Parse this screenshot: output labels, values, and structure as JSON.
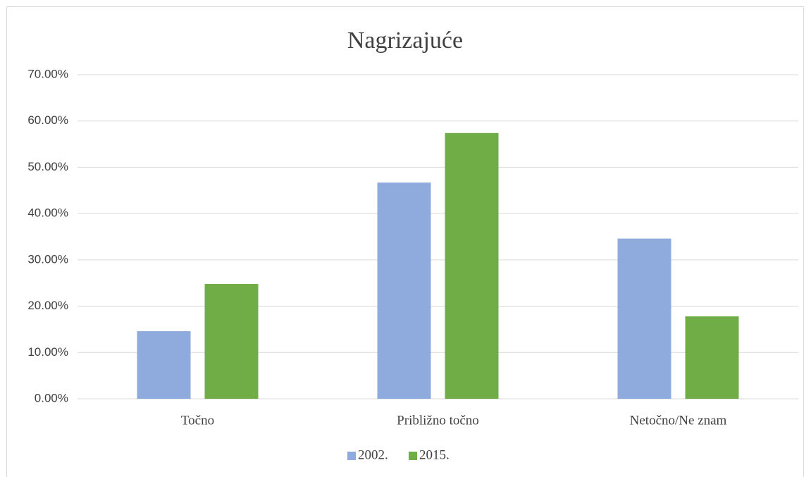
{
  "chart_data": {
    "type": "bar",
    "title": "Nagrizajuće",
    "categories": [
      "Točno",
      "Približno točno",
      "Netočno/Ne znam"
    ],
    "series": [
      {
        "name": "2002.",
        "color": "#8faadc",
        "values": [
          14.6,
          46.7,
          34.6
        ]
      },
      {
        "name": "2015.",
        "color": "#70ad47",
        "values": [
          24.8,
          57.4,
          17.8
        ]
      }
    ],
    "ylim": [
      0,
      70
    ],
    "yticks": [
      {
        "value": 0,
        "label": "0.00%"
      },
      {
        "value": 10,
        "label": "10.00%"
      },
      {
        "value": 20,
        "label": "20.00%"
      },
      {
        "value": 30,
        "label": "30.00%"
      },
      {
        "value": 40,
        "label": "40.00%"
      },
      {
        "value": 50,
        "label": "50.00%"
      },
      {
        "value": 60,
        "label": "60.00%"
      },
      {
        "value": 70,
        "label": "70.00%"
      }
    ],
    "grid": true,
    "legend": "bottom"
  }
}
